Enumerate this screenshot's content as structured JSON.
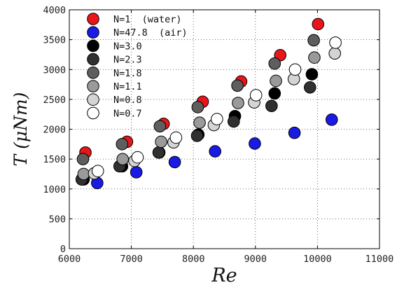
{
  "chart_data": {
    "type": "scatter",
    "xlabel": "Re",
    "ylabel": "T (μNm)",
    "xlim": [
      6000,
      11000
    ],
    "ylim": [
      0,
      4000
    ],
    "xticks": [
      "6000",
      "7000",
      "8000",
      "9000",
      "10000",
      "11000"
    ],
    "yticks": [
      "0",
      "500",
      "1000",
      "1500",
      "2000",
      "2500",
      "3000",
      "3500",
      "4000"
    ],
    "grid": "dotted",
    "legend_position": "top-left",
    "series": [
      {
        "name": "N=1  (water)",
        "color": "#e8151a",
        "points": [
          [
            6260,
            1610
          ],
          [
            6930,
            1790
          ],
          [
            7520,
            2090
          ],
          [
            8150,
            2460
          ],
          [
            8770,
            2800
          ],
          [
            9400,
            3240
          ],
          [
            10010,
            3760
          ]
        ]
      },
      {
        "name": "N=47.8  (air)",
        "color": "#1a1ae6",
        "points": [
          [
            6450,
            1100
          ],
          [
            7080,
            1280
          ],
          [
            7700,
            1450
          ],
          [
            8350,
            1630
          ],
          [
            8990,
            1760
          ],
          [
            9630,
            1940
          ],
          [
            10230,
            2160
          ]
        ]
      },
      {
        "name": "N=3.0",
        "color": "#000000",
        "points": [
          [
            6230,
            1160
          ],
          [
            6850,
            1380
          ],
          [
            7450,
            1610
          ],
          [
            8080,
            1910
          ],
          [
            8670,
            2220
          ],
          [
            9310,
            2600
          ],
          [
            9910,
            2920
          ]
        ]
      },
      {
        "name": "N=2.3",
        "color": "#303030",
        "points": [
          [
            6200,
            1160
          ],
          [
            6810,
            1380
          ],
          [
            7440,
            1610
          ],
          [
            8060,
            1890
          ],
          [
            8650,
            2130
          ],
          [
            9260,
            2390
          ],
          [
            9880,
            2700
          ]
        ]
      },
      {
        "name": "N=1.8",
        "color": "#5e5e5e",
        "points": [
          [
            6220,
            1500
          ],
          [
            6850,
            1750
          ],
          [
            7460,
            2050
          ],
          [
            8070,
            2370
          ],
          [
            8710,
            2730
          ],
          [
            9310,
            3100
          ],
          [
            9940,
            3490
          ]
        ]
      },
      {
        "name": "N=1.1",
        "color": "#9a9a9a",
        "points": [
          [
            6230,
            1250
          ],
          [
            6860,
            1500
          ],
          [
            7480,
            1790
          ],
          [
            8100,
            2110
          ],
          [
            8720,
            2440
          ],
          [
            9330,
            2810
          ],
          [
            9950,
            3200
          ]
        ]
      },
      {
        "name": "N=0.8",
        "color": "#d4d4d4",
        "points": [
          [
            6400,
            1260
          ],
          [
            7050,
            1470
          ],
          [
            7680,
            1780
          ],
          [
            8330,
            2070
          ],
          [
            8980,
            2450
          ],
          [
            9620,
            2840
          ],
          [
            10280,
            3270
          ]
        ]
      },
      {
        "name": "N=0.7",
        "color": "#ffffff",
        "points": [
          [
            6460,
            1300
          ],
          [
            7100,
            1530
          ],
          [
            7720,
            1860
          ],
          [
            8380,
            2170
          ],
          [
            9010,
            2570
          ],
          [
            9640,
            3000
          ],
          [
            10290,
            3450
          ]
        ]
      }
    ]
  }
}
